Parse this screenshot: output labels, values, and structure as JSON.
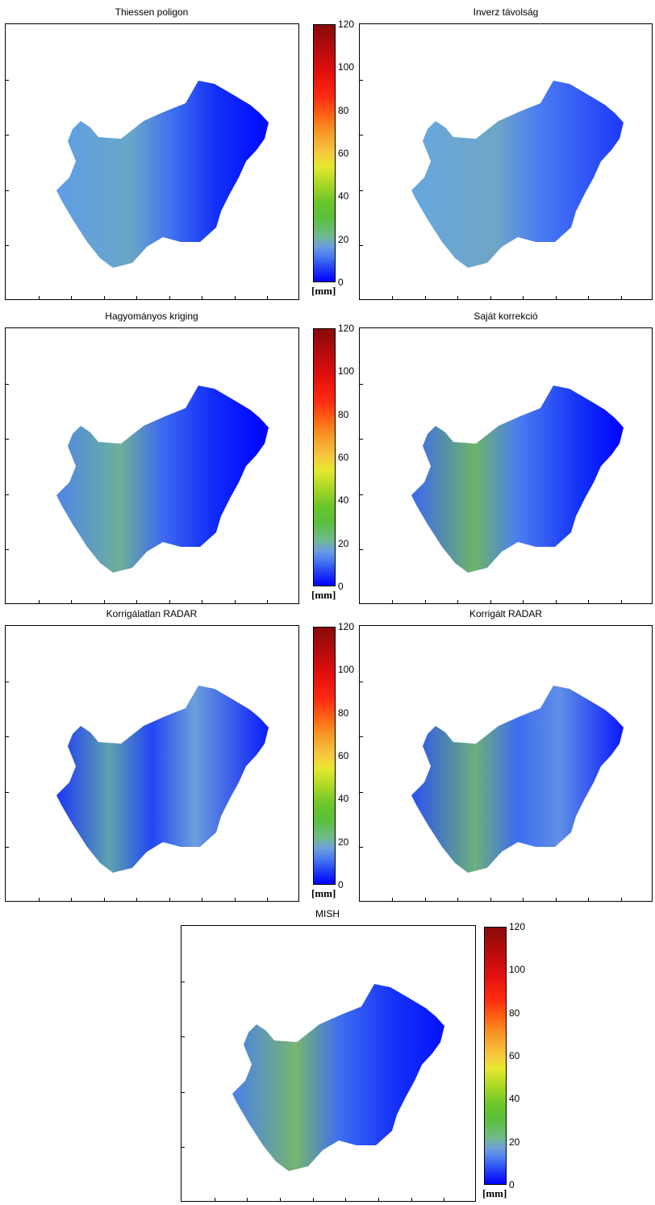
{
  "panels": [
    {
      "title": "Thiessen poligon"
    },
    {
      "title": "Inverz távolság"
    },
    {
      "title": "Hagyományos kriging"
    },
    {
      "title": "Saját korrekció"
    },
    {
      "title": "Korrigálatlan RADAR"
    },
    {
      "title": "Korrigált RADAR"
    },
    {
      "title": "MISH"
    }
  ],
  "colorbar": {
    "ticks": [
      "120",
      "100",
      "80",
      "60",
      "40",
      "20",
      "0"
    ],
    "unit": "[mm]",
    "min": 0,
    "max": 120
  },
  "colors": {
    "low": "#0000ff",
    "mid_blue": "#4a7cf0",
    "light_blue": "#6fa0dc",
    "green": "#5cbf3a",
    "yellow": "#e8e830",
    "red": "#ff2a10",
    "dark_red": "#8a0909"
  }
}
